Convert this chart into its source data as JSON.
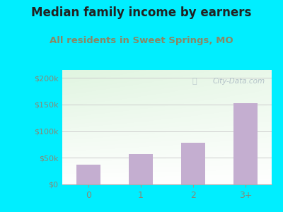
{
  "title": "Median family income by earners",
  "subtitle": "All residents in Sweet Springs, MO",
  "categories": [
    "0",
    "1",
    "2",
    "3+"
  ],
  "values": [
    37000,
    57000,
    78000,
    153000
  ],
  "bar_color": "#c4aed0",
  "title_color": "#222222",
  "subtitle_color": "#888866",
  "title_fontsize": 12,
  "subtitle_fontsize": 9.5,
  "yticks": [
    0,
    50000,
    100000,
    150000,
    200000
  ],
  "ytick_labels": [
    "$0",
    "$50k",
    "$100k",
    "$150k",
    "$200k"
  ],
  "ylim": [
    0,
    215000
  ],
  "background_outer": "#00eeff",
  "watermark": "City-Data.com",
  "watermark_color": "#aab8c2",
  "grid_color": "#cccccc",
  "tick_color": "#888877"
}
